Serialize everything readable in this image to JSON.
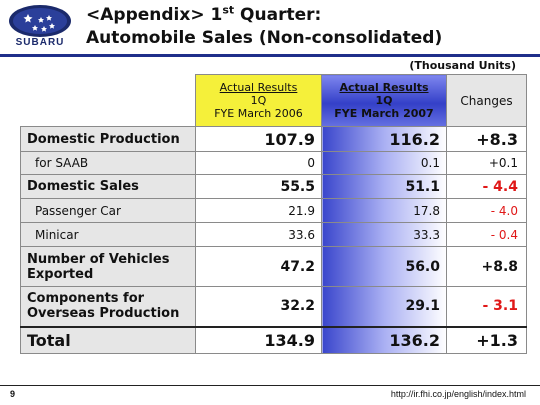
{
  "header": {
    "brand": "SUBARU",
    "title_pre": "<Appendix> 1",
    "title_sup": "st",
    "title_post": " Quarter:",
    "title_line2": "Automobile Sales (Non-consolidated)"
  },
  "unit": "(Thousand Units)",
  "columns": {
    "prev": {
      "l1": "Actual Results",
      "l2": "1Q",
      "l3": "FYE March 2006"
    },
    "curr": {
      "l1": "Actual Results",
      "l2": "1Q",
      "l3": "FYE March 2007"
    },
    "changes": "Changes"
  },
  "rows": [
    {
      "label": "Domestic Production",
      "prev": "107.9",
      "curr": "116.2",
      "change": "+8.3"
    },
    {
      "label": "for SAAB",
      "prev": "0",
      "curr": "0.1",
      "change": "+0.1"
    },
    {
      "label": "Domestic Sales",
      "prev": "55.5",
      "curr": "51.1",
      "change": "- 4.4"
    },
    {
      "label": "Passenger Car",
      "prev": "21.9",
      "curr": "17.8",
      "change": "- 4.0"
    },
    {
      "label": "Minicar",
      "prev": "33.6",
      "curr": "33.3",
      "change": "- 0.4"
    },
    {
      "label1": "Number of Vehicles",
      "label2": "Exported",
      "prev": "47.2",
      "curr": "56.0",
      "change": "+8.8"
    },
    {
      "label1": "Components for",
      "label2": "Overseas Production",
      "prev": "32.2",
      "curr": "29.1",
      "change": "- 3.1"
    },
    {
      "label": "Total",
      "prev": "134.9",
      "curr": "136.2",
      "change": "+1.3"
    }
  ],
  "colors": {
    "accent_blue": "#1f2f8a",
    "highlight_yellow": "#f5f03a",
    "negative_red": "#e01818"
  },
  "footer": {
    "page": "9",
    "url": "http://ir.fhi.co.jp/english/index.html"
  }
}
